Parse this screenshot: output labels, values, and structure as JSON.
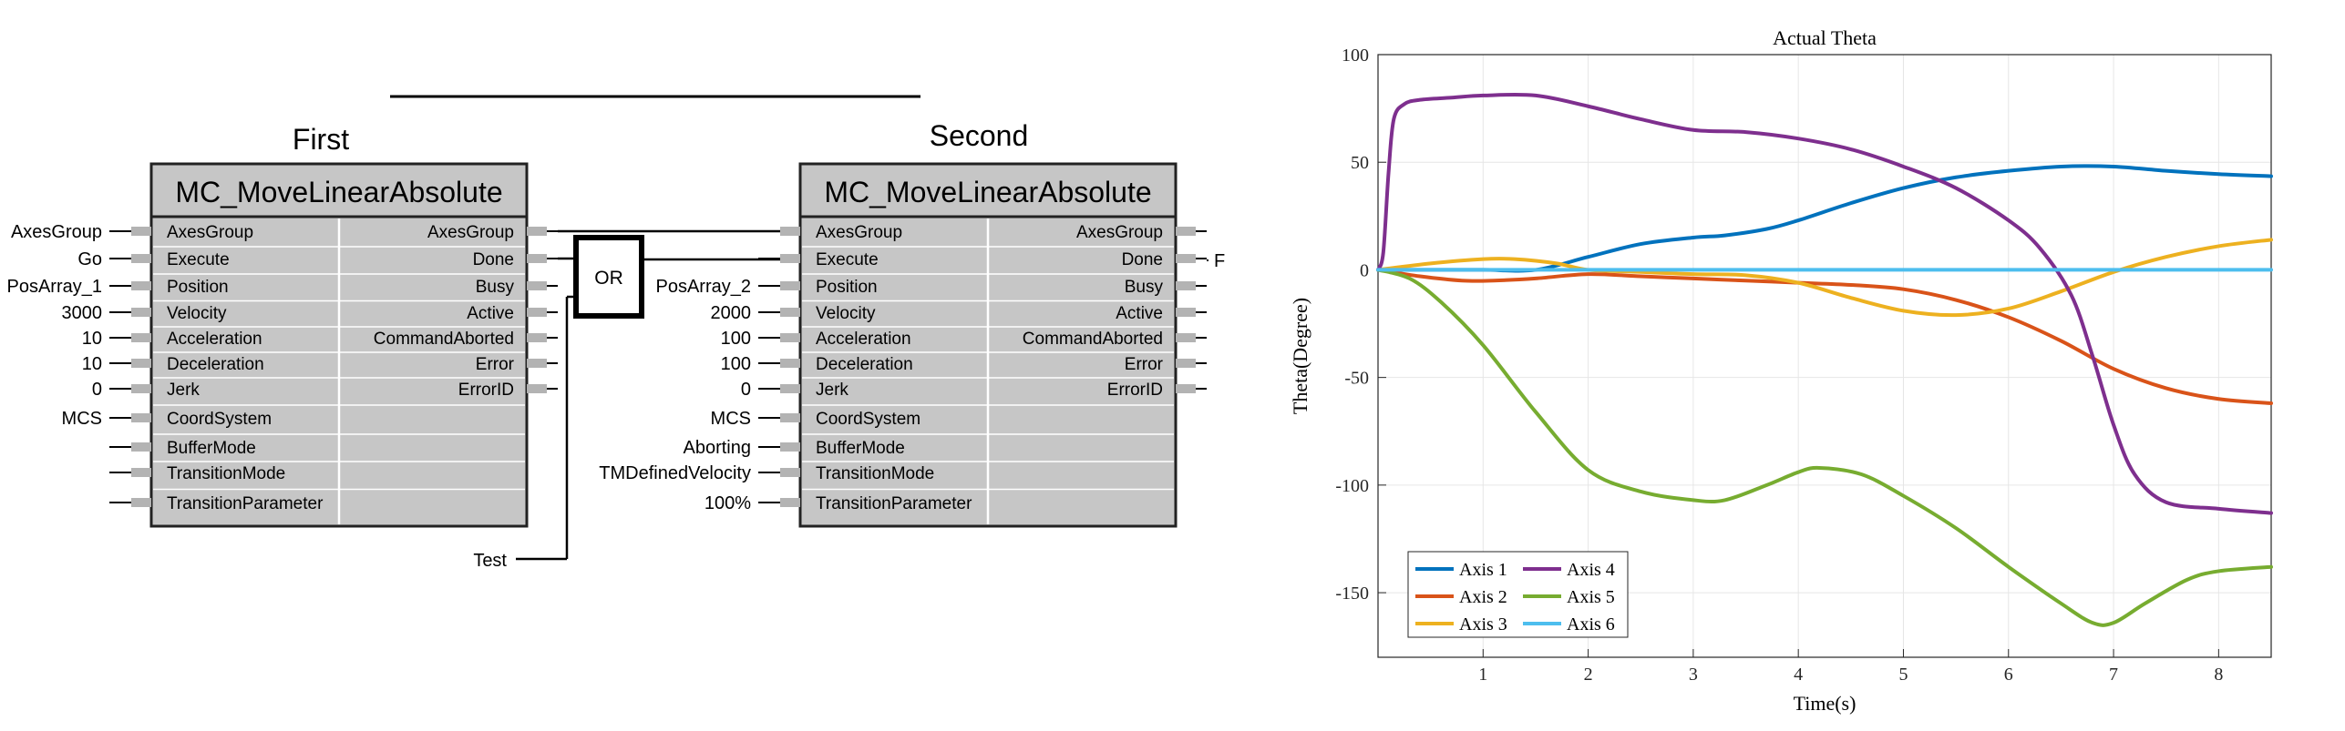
{
  "fb_common": {
    "type_name": "MC_MoveLinearAbsolute",
    "inputs": [
      "AxesGroup",
      "Execute",
      "Position",
      "Velocity",
      "Acceleration",
      "Deceleration",
      "Jerk",
      "CoordSystem",
      "BufferMode",
      "TransitionMode",
      "TransitionParameter"
    ],
    "outputs": [
      "AxesGroup",
      "Done",
      "Busy",
      "Active",
      "CommandAborted",
      "Error",
      "ErrorID"
    ]
  },
  "fb_first": {
    "instance_name": "First",
    "input_values": [
      "AxesGroup",
      "Go",
      "PosArray_1",
      "3000",
      "10",
      "10",
      "0",
      "MCS",
      "",
      "",
      ""
    ]
  },
  "fb_second": {
    "instance_name": "Second",
    "input_values": [
      "",
      "",
      "PosArray_2",
      "2000",
      "100",
      "100",
      "0",
      "MCS",
      "Aborting",
      "TMDefinedVelocity",
      "100%"
    ],
    "done_output_label": "F"
  },
  "or_block": {
    "label": "OR",
    "extra_input_label": "Test"
  },
  "chart_data": {
    "type": "line",
    "title": "Actual Theta",
    "xlabel": "Time(s)",
    "ylabel": "Theta(Degree)",
    "xlim": [
      0,
      8.5
    ],
    "ylim": [
      -180,
      100
    ],
    "xticks": [
      1,
      2,
      3,
      4,
      5,
      6,
      7,
      8
    ],
    "yticks": [
      100,
      50,
      0,
      -50,
      -100,
      -150
    ],
    "grid": true,
    "legend": {
      "placement": "bottom-left",
      "columns": 2
    },
    "series": [
      {
        "name": "Axis 1",
        "color": "#0072BD",
        "x": [
          0,
          0.5,
          1,
          1.5,
          2,
          2.5,
          3,
          3.3,
          3.7,
          4,
          4.5,
          5,
          5.5,
          6,
          6.5,
          7,
          7.5,
          8,
          8.5
        ],
        "y": [
          0,
          0,
          0,
          0,
          6,
          12,
          15,
          16,
          19,
          23,
          31,
          38,
          43,
          46,
          48,
          48,
          46,
          44.5,
          43.5
        ]
      },
      {
        "name": "Axis 2",
        "color": "#D95319",
        "x": [
          0,
          0.4,
          0.8,
          1.1,
          1.5,
          2,
          2.5,
          3,
          3.5,
          4,
          4.5,
          5,
          5.5,
          6,
          6.5,
          7,
          7.5,
          8,
          8.5
        ],
        "y": [
          0,
          -3,
          -5,
          -5,
          -4,
          -2,
          -3,
          -4,
          -5,
          -6,
          -7,
          -9,
          -14,
          -22,
          -33,
          -46,
          -55,
          -60,
          -62
        ]
      },
      {
        "name": "Axis 3",
        "color": "#EDB120",
        "x": [
          0,
          0.5,
          1,
          1.3,
          1.7,
          2,
          2.5,
          3,
          3.5,
          4,
          4.5,
          5,
          5.5,
          6,
          6.5,
          7,
          7.5,
          8,
          8.5
        ],
        "y": [
          0,
          3,
          5,
          5,
          3,
          0,
          -1,
          -2,
          -2.5,
          -6,
          -13,
          -19,
          -21,
          -18,
          -10,
          -1,
          6,
          11,
          14
        ]
      },
      {
        "name": "Axis 4",
        "color": "#7E2F8E",
        "x": [
          0,
          0.05,
          0.1,
          0.15,
          0.25,
          0.4,
          0.7,
          1,
          1.5,
          2,
          2.5,
          3,
          3.5,
          4,
          4.5,
          5,
          5.5,
          6,
          6.3,
          6.6,
          6.8,
          7,
          7.2,
          7.5,
          8,
          8.5
        ],
        "y": [
          0,
          8,
          45,
          70,
          77,
          79,
          80,
          81,
          81,
          76,
          70,
          65,
          64,
          61,
          56,
          48,
          38,
          23,
          10,
          -12,
          -40,
          -72,
          -95,
          -108,
          -111,
          -113
        ]
      },
      {
        "name": "Axis 5",
        "color": "#77AC30",
        "x": [
          0,
          0.3,
          0.6,
          1,
          1.5,
          2,
          2.5,
          3,
          3.3,
          3.7,
          4,
          4.2,
          4.6,
          5,
          5.5,
          6,
          6.5,
          6.8,
          7,
          7.3,
          7.7,
          8,
          8.5
        ],
        "y": [
          0,
          -4,
          -15,
          -35,
          -66,
          -93,
          -103,
          -107,
          -107,
          -100,
          -94,
          -92,
          -95,
          -105,
          -120,
          -138,
          -155,
          -164,
          -164,
          -155,
          -144,
          -140,
          -138
        ]
      },
      {
        "name": "Axis 6",
        "color": "#4DBEEE",
        "x": [
          0,
          8.5
        ],
        "y": [
          0,
          0
        ]
      }
    ]
  }
}
